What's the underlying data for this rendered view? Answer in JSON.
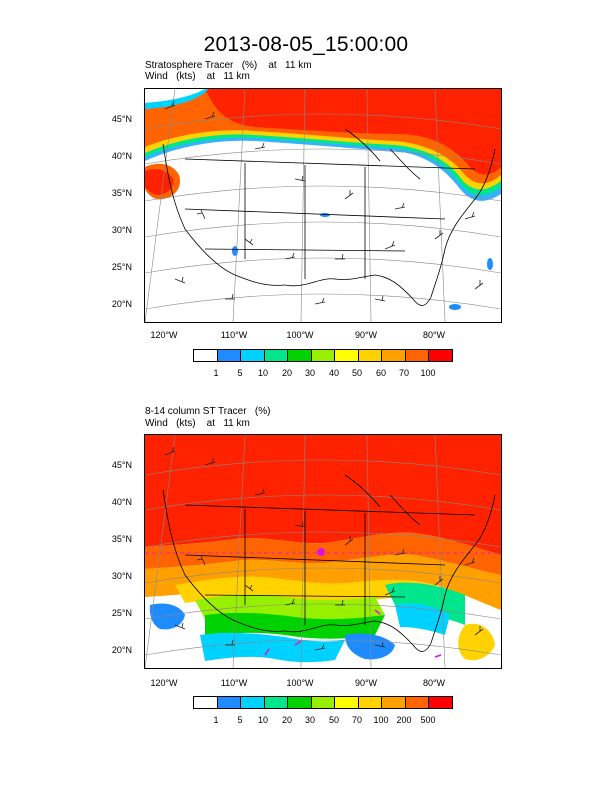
{
  "title": "2013-08-05_15:00:00",
  "panels": [
    {
      "subtitle_line1": "Stratosphere Tracer   (%)    at   11 km",
      "subtitle_line2": "Wind   (kts)    at   11 km",
      "lat_labels": [
        "45°N",
        "40°N",
        "35°N",
        "30°N",
        "25°N",
        "20°N"
      ],
      "lon_labels": [
        "120°W",
        "110°W",
        "100°W",
        "90°W",
        "80°W"
      ],
      "colorbar_labels": [
        "1",
        "5",
        "10",
        "20",
        "30",
        "40",
        "50",
        "60",
        "70",
        "100"
      ],
      "colorbar_colors": [
        "#ffffff",
        "#1e8cff",
        "#00d2ff",
        "#00e68c",
        "#00d200",
        "#96f000",
        "#ffff00",
        "#ffd200",
        "#ffa000",
        "#ff6400",
        "#ff0000"
      ]
    },
    {
      "subtitle_line1": "8-14 column ST Tracer   (%)",
      "subtitle_line2": "Wind   (kts)    at   11 km",
      "lat_labels": [
        "45°N",
        "40°N",
        "35°N",
        "30°N",
        "25°N",
        "20°N"
      ],
      "lon_labels": [
        "120°W",
        "110°W",
        "100°W",
        "90°W",
        "80°W"
      ],
      "colorbar_labels": [
        "1",
        "5",
        "10",
        "20",
        "30",
        "50",
        "70",
        "100",
        "200",
        "500"
      ],
      "colorbar_colors": [
        "#ffffff",
        "#1e8cff",
        "#00d2ff",
        "#00e68c",
        "#00d200",
        "#96f000",
        "#ffff00",
        "#ffd200",
        "#ffa000",
        "#ff6400",
        "#ff0000"
      ]
    }
  ]
}
